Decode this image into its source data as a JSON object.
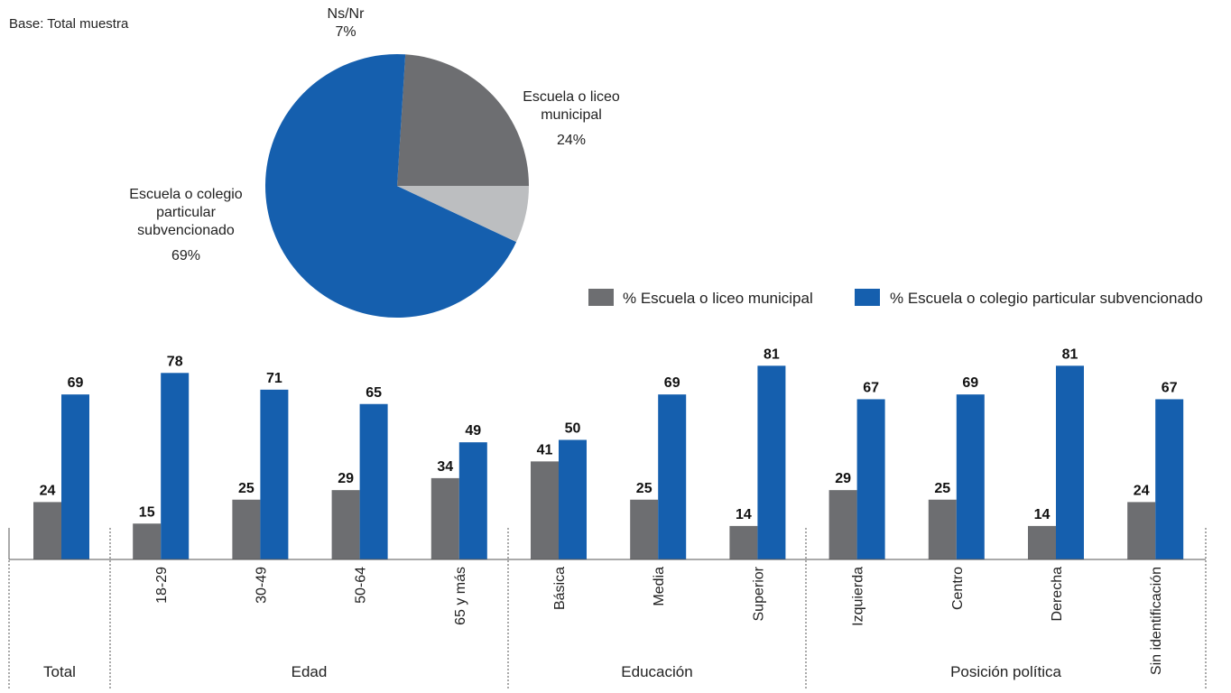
{
  "base_label": "Base: Total muestra",
  "chart_data": [
    {
      "type": "pie",
      "slices": [
        {
          "label_lines": [
            "Escuela o liceo",
            "municipal"
          ],
          "value": 24,
          "value_label": "24%",
          "color": "#6d6e71"
        },
        {
          "label_lines": [
            "Escuela o colegio",
            "particular",
            "subvencionado"
          ],
          "value": 69,
          "value_label": "69%",
          "color": "#155fae"
        },
        {
          "label_lines": [
            "Ns/Nr"
          ],
          "value": 7,
          "value_label": "7%",
          "color": "#bcbec0"
        }
      ]
    },
    {
      "type": "bar",
      "legend_position": "top-right",
      "series": [
        {
          "name": "% Escuela o liceo municipal",
          "color": "#6d6e71",
          "values": [
            24,
            15,
            25,
            29,
            34,
            41,
            25,
            14,
            29,
            25,
            14,
            24
          ]
        },
        {
          "name": "% Escuela o colegio particular subvencionado",
          "color": "#155fae",
          "values": [
            69,
            78,
            71,
            65,
            49,
            50,
            69,
            81,
            67,
            69,
            81,
            67
          ]
        }
      ],
      "categories": [
        "",
        "18-29",
        "30-49",
        "50-64",
        "65 y más",
        "Básica",
        "Media",
        "Superior",
        "Izquierda",
        "Centro",
        "Derecha",
        "Sin identificación"
      ],
      "groups": [
        {
          "name": "Total",
          "start": 0,
          "end": 0
        },
        {
          "name": "Edad",
          "start": 1,
          "end": 4
        },
        {
          "name": "Educación",
          "start": 5,
          "end": 7
        },
        {
          "name": "Posición política",
          "start": 8,
          "end": 11
        }
      ],
      "ylim": [
        0,
        100
      ]
    }
  ]
}
